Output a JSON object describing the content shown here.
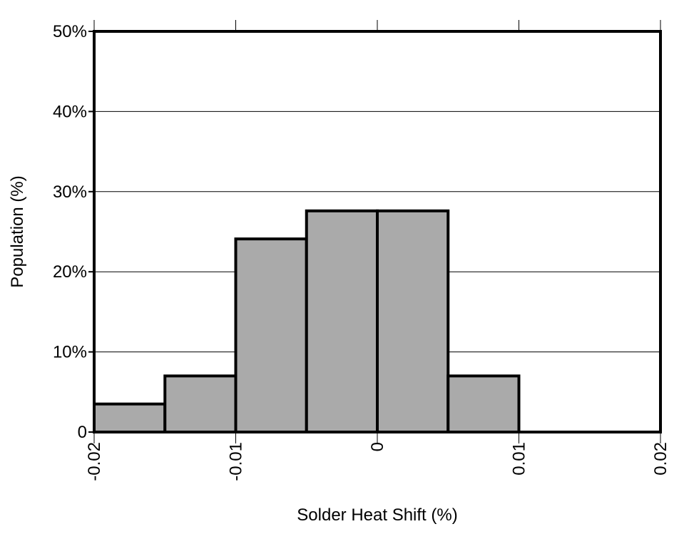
{
  "chart_data": {
    "type": "bar",
    "title": "",
    "xlabel": "Solder Heat Shift (%)",
    "ylabel": "Population (%)",
    "xlim": [
      -0.02,
      0.02
    ],
    "ylim": [
      0,
      50
    ],
    "x_ticks": [
      {
        "value": -0.02,
        "label": "-0.02"
      },
      {
        "value": -0.01,
        "label": "-0.01"
      },
      {
        "value": 0,
        "label": "0"
      },
      {
        "value": 0.01,
        "label": "0.01"
      },
      {
        "value": 0.02,
        "label": "0.02"
      }
    ],
    "y_ticks": [
      {
        "value": 0,
        "label": "0"
      },
      {
        "value": 10,
        "label": "10%"
      },
      {
        "value": 20,
        "label": "20%"
      },
      {
        "value": 30,
        "label": "30%"
      },
      {
        "value": 40,
        "label": "40%"
      },
      {
        "value": 50,
        "label": "50%"
      }
    ],
    "bins": [
      {
        "x0": -0.02,
        "x1": -0.015,
        "value": 3.5
      },
      {
        "x0": -0.015,
        "x1": -0.01,
        "value": 7.0
      },
      {
        "x0": -0.01,
        "x1": -0.005,
        "value": 24.1
      },
      {
        "x0": -0.005,
        "x1": 0.0,
        "value": 27.6
      },
      {
        "x0": 0.0,
        "x1": 0.005,
        "value": 27.6
      },
      {
        "x0": 0.005,
        "x1": 0.01,
        "value": 7.0
      },
      {
        "x0": 0.01,
        "x1": 0.015,
        "value": 0
      },
      {
        "x0": 0.015,
        "x1": 0.02,
        "value": 0
      }
    ],
    "grid": {
      "horizontal": true,
      "vertical": false
    },
    "colors": {
      "bar_fill": "#aaaaaa",
      "bar_stroke": "#000000",
      "frame": "#000000",
      "grid": "#000000"
    }
  }
}
